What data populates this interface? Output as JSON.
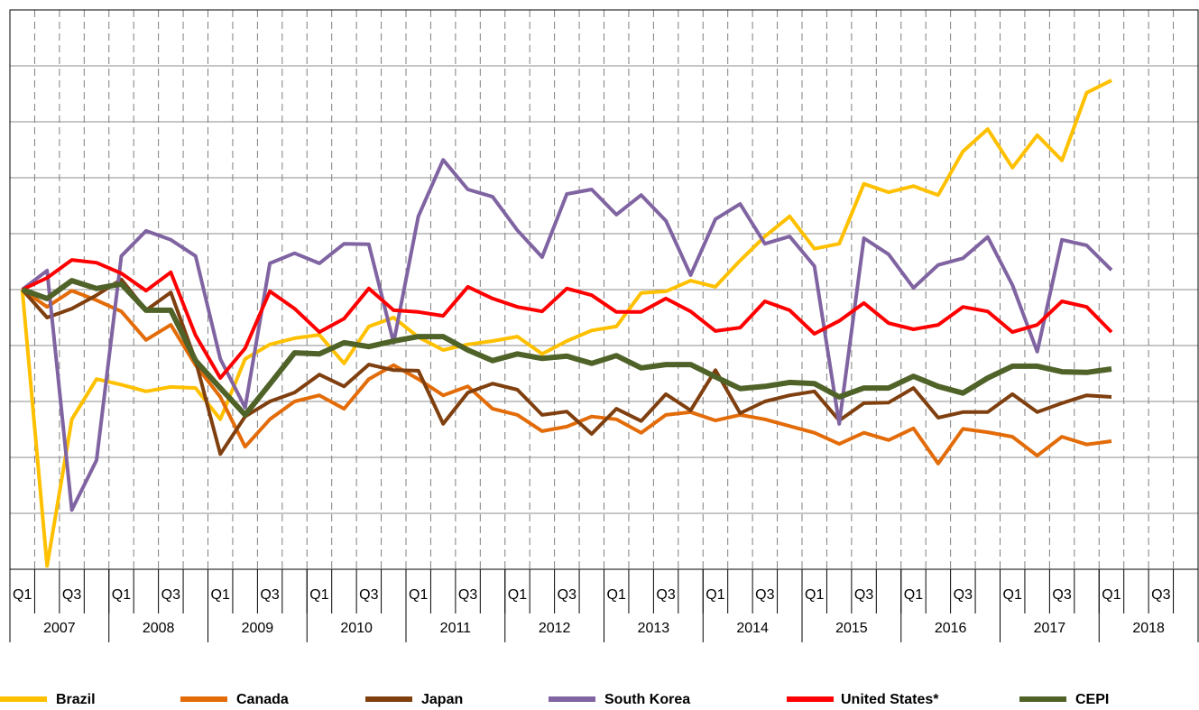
{
  "chart_data": {
    "type": "line",
    "categories": [
      "Q1",
      null,
      "Q3",
      null,
      "Q1",
      null,
      "Q3",
      null,
      "Q1",
      null,
      "Q3",
      null,
      "Q1",
      null,
      "Q3",
      null,
      "Q1",
      null,
      "Q3",
      null,
      "Q1",
      null,
      "Q3",
      null,
      "Q1",
      null,
      "Q3",
      null,
      "Q1",
      null,
      "Q3",
      null,
      "Q1",
      null,
      "Q3",
      null,
      "Q1",
      null,
      "Q3",
      null,
      "Q1",
      null,
      "Q3",
      null,
      "Q1",
      null,
      "Q3",
      null
    ],
    "year_labels": [
      "2007",
      "2008",
      "2009",
      "2010",
      "2011",
      "2012",
      "2013",
      "2014",
      "2015",
      "2016",
      "2017",
      "2018"
    ],
    "ylim": [
      50,
      150
    ],
    "yticks": [
      50,
      60,
      70,
      80,
      90,
      100,
      110,
      120,
      130,
      140,
      150
    ],
    "grid": true,
    "series": [
      {
        "name": "Brazil",
        "color": "#ffc000",
        "values": [
          100,
          50.6,
          76.8,
          84,
          83,
          81.8,
          82.6,
          82.4,
          76.8,
          87.6,
          90.2,
          91.3,
          91.9,
          86.8,
          93.4,
          95,
          91.5,
          89.2,
          90.2,
          90.8,
          91.6,
          88.5,
          90.8,
          92.7,
          93.4,
          99.4,
          99.7,
          101.6,
          100.5,
          105.2,
          109.5,
          113.1,
          107.3,
          108.2,
          118.9,
          117.4,
          118.5,
          116.9,
          124.7,
          128.7,
          121.8,
          127.6,
          123.1,
          135.2,
          137.4,
          null,
          null,
          null
        ]
      },
      {
        "name": "Canada",
        "color": "#e36c09",
        "values": [
          100,
          96.9,
          99.8,
          98.1,
          96.1,
          91,
          93.7,
          86.5,
          80.8,
          71.9,
          76.8,
          80,
          81.1,
          78.7,
          84,
          86.5,
          84,
          81.1,
          82.7,
          78.7,
          77.6,
          74.7,
          75.5,
          77.3,
          76.8,
          74.4,
          77.6,
          78.1,
          76.6,
          77.6,
          76.8,
          75.6,
          74.4,
          72.4,
          74.4,
          73.1,
          75.2,
          68.9,
          75.1,
          74.5,
          73.7,
          70.3,
          73.7,
          72.3,
          72.9,
          null,
          null,
          null
        ]
      },
      {
        "name": "Japan",
        "color": "#7f3f0f",
        "values": [
          100,
          95,
          96.6,
          99,
          101.8,
          96.3,
          99.5,
          87.3,
          70.6,
          77.3,
          80,
          81.6,
          84.8,
          82.7,
          86.6,
          85.6,
          85.5,
          76,
          81.6,
          83.2,
          82.1,
          77.6,
          78.2,
          74.2,
          78.7,
          76.5,
          81.3,
          78.4,
          85.6,
          77.9,
          80,
          81.1,
          81.8,
          76.6,
          79.7,
          79.8,
          82.4,
          77.1,
          78.1,
          78.1,
          81.3,
          78.1,
          79.7,
          81.1,
          80.8,
          null,
          null,
          null
        ]
      },
      {
        "name": "South Korea",
        "color": "#8064a2",
        "values": [
          100,
          103.4,
          60.6,
          69.5,
          106,
          110.5,
          108.9,
          106,
          87.6,
          78.9,
          104.7,
          106.5,
          104.7,
          108.2,
          108.1,
          90.5,
          113.1,
          123.2,
          117.9,
          116.6,
          110.6,
          105.8,
          117.1,
          117.9,
          113.4,
          116.9,
          112.3,
          102.6,
          112.6,
          115.3,
          108.2,
          109.5,
          104.2,
          76,
          109.2,
          106.3,
          100.3,
          104.4,
          105.6,
          109.4,
          100.8,
          88.9,
          108.9,
          107.9,
          103.5,
          null,
          null,
          null
        ]
      },
      {
        "name": "United States*",
        "color": "#ff0000",
        "values": [
          100,
          102.1,
          105.3,
          104.8,
          102.9,
          99.8,
          103.1,
          91.8,
          84.2,
          89.5,
          99.7,
          96.6,
          92.4,
          94.8,
          100.2,
          96.3,
          96,
          95.3,
          100.5,
          98.4,
          96.9,
          96.1,
          100.2,
          99,
          96,
          96,
          98.4,
          96.1,
          92.6,
          93.2,
          97.9,
          96.3,
          92.1,
          94.4,
          97.6,
          94,
          92.9,
          93.7,
          96.9,
          96.1,
          92.4,
          93.7,
          97.9,
          96.9,
          92.4,
          null,
          null,
          null
        ]
      },
      {
        "name": "CEPI",
        "color": "#4f6228",
        "values": [
          100,
          98.4,
          101.6,
          100.2,
          101,
          96.3,
          96.3,
          87.3,
          82.4,
          77.6,
          83.1,
          88.7,
          88.5,
          90.5,
          89.8,
          90.8,
          91.6,
          91.6,
          89.2,
          87.3,
          88.5,
          87.7,
          88.1,
          86.8,
          88.2,
          86,
          86.6,
          86.6,
          84.4,
          82.3,
          82.7,
          83.4,
          83.2,
          80.8,
          82.4,
          82.4,
          84.5,
          82.7,
          81.5,
          84.2,
          86.3,
          86.3,
          85.3,
          85.2,
          85.8,
          null,
          null,
          null
        ]
      }
    ]
  }
}
